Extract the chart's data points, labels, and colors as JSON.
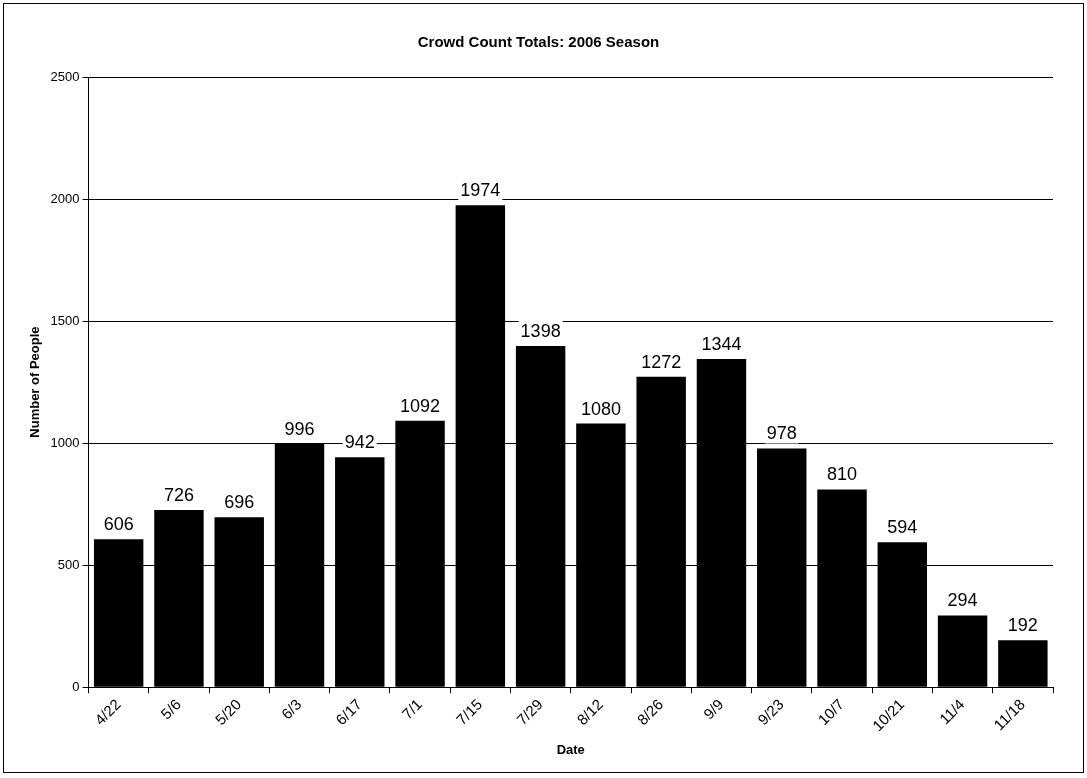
{
  "chart_data": {
    "type": "bar",
    "title": "Crowd Count Totals: 2006 Season",
    "xlabel": "Date",
    "ylabel": "Number of People",
    "categories": [
      "4/22",
      "5/6",
      "5/20",
      "6/3",
      "6/17",
      "7/1",
      "7/15",
      "7/29",
      "8/12",
      "8/26",
      "9/9",
      "9/23",
      "10/7",
      "10/21",
      "11/4",
      "11/18"
    ],
    "values": [
      606,
      726,
      696,
      996,
      942,
      1092,
      1974,
      1398,
      1080,
      1272,
      1344,
      978,
      810,
      594,
      294,
      192
    ],
    "color": "#000000",
    "ylim": [
      0,
      2500
    ],
    "yticks": [
      0,
      500,
      1000,
      1500,
      2000,
      2500
    ],
    "grid": "y",
    "data_labels": true
  }
}
